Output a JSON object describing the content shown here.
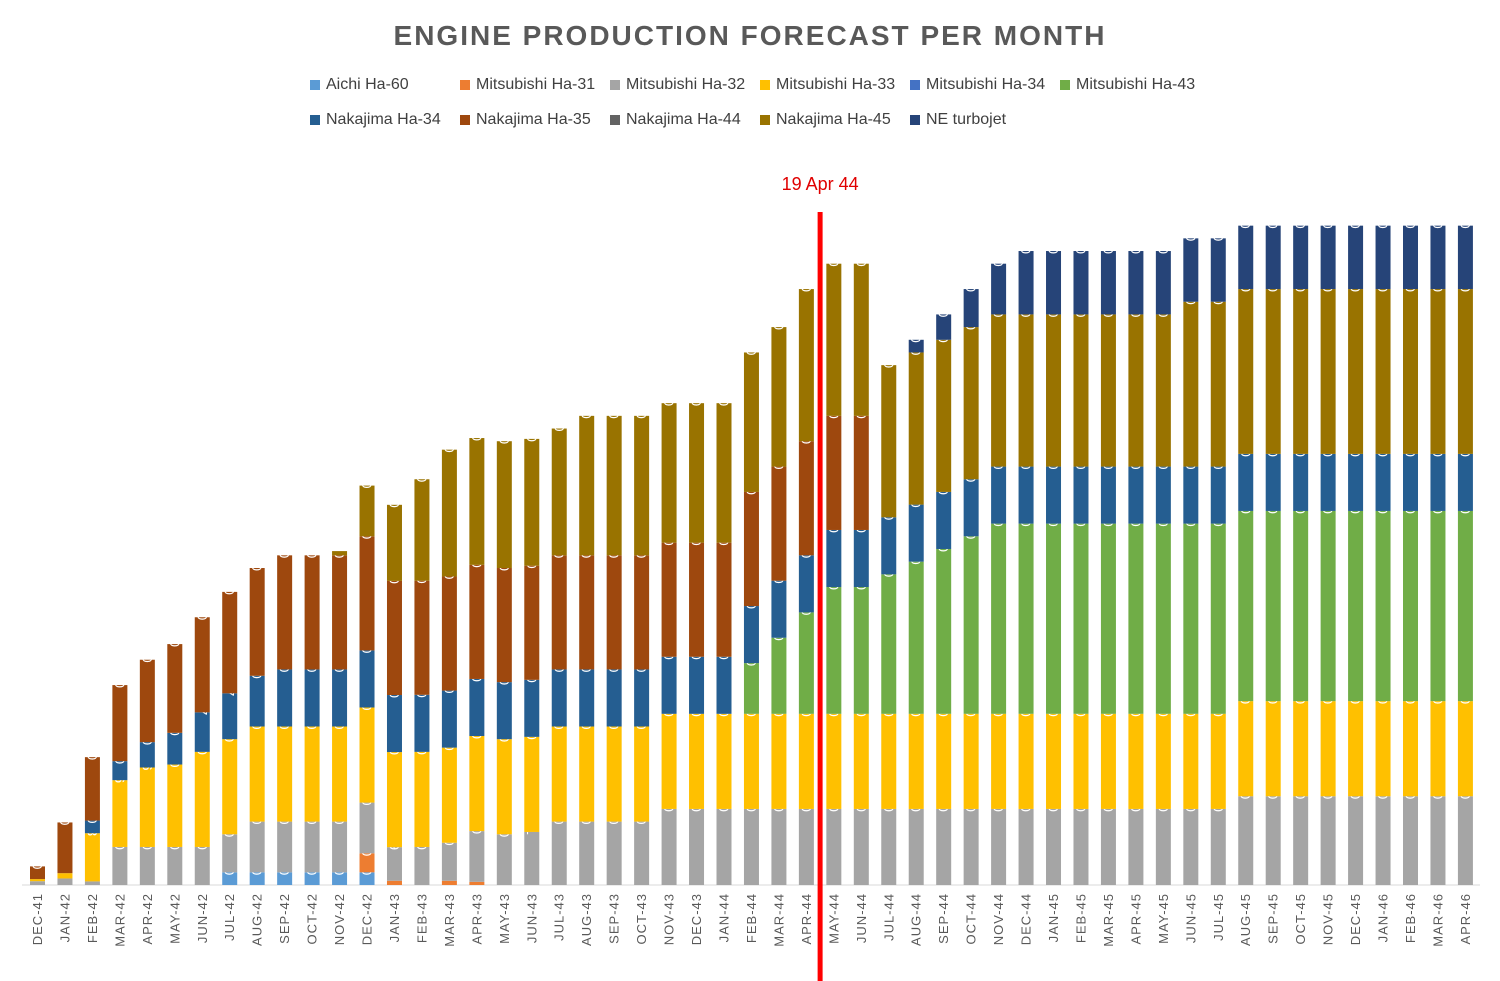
{
  "chart_data": {
    "type": "bar",
    "stacked": true,
    "title": "ENGINE PRODUCTION FORECAST PER MONTH",
    "xlabel": "",
    "ylabel": "",
    "grid": false,
    "legend_position": "top",
    "marker": {
      "label": "19 Apr 44",
      "between": [
        "APR-44",
        "MAY-44"
      ],
      "color": "#ff0000"
    },
    "categories": [
      "DEC-41",
      "JAN-42",
      "FEB-42",
      "MAR-42",
      "APR-42",
      "MAY-42",
      "JUN-42",
      "JUL-42",
      "AUG-42",
      "SEP-42",
      "OCT-42",
      "NOV-42",
      "DEC-42",
      "JAN-43",
      "FEB-43",
      "MAR-43",
      "APR-43",
      "MAY-43",
      "JUN-43",
      "JUL-43",
      "AUG-43",
      "SEP-43",
      "OCT-43",
      "NOV-43",
      "DEC-43",
      "JAN-44",
      "FEB-44",
      "MAR-44",
      "APR-44",
      "MAY-44",
      "JUN-44",
      "JUL-44",
      "AUG-44",
      "SEP-44",
      "OCT-44",
      "NOV-44",
      "DEC-44",
      "JAN-45",
      "FEB-45",
      "MAR-45",
      "APR-45",
      "MAY-45",
      "JUN-45",
      "JUL-45",
      "AUG-45",
      "SEP-45",
      "OCT-45",
      "NOV-45",
      "DEC-45",
      "JAN-46",
      "FEB-46",
      "MAR-46",
      "APR-46"
    ],
    "series": [
      {
        "name": "Aichi Ha-60",
        "color": "#5b9bd5",
        "values": [
          0,
          0,
          0,
          0,
          0,
          0,
          0,
          60,
          60,
          60,
          60,
          60,
          60,
          0,
          0,
          0,
          0,
          0,
          0,
          0,
          0,
          0,
          0,
          0,
          0,
          0,
          0,
          0,
          0,
          0,
          0,
          0,
          0,
          0,
          0,
          0,
          0,
          0,
          0,
          0,
          0,
          0,
          0,
          0,
          0,
          0,
          0,
          0,
          0,
          0,
          0,
          0,
          0
        ]
      },
      {
        "name": "Mitsubishi Ha-31",
        "color": "#ed7d31",
        "values": [
          0,
          0,
          0,
          0,
          0,
          0,
          0,
          0,
          0,
          0,
          0,
          0,
          90,
          20,
          0,
          20,
          15,
          0,
          0,
          0,
          0,
          0,
          0,
          0,
          0,
          0,
          0,
          0,
          0,
          0,
          0,
          0,
          0,
          0,
          0,
          0,
          0,
          0,
          0,
          0,
          0,
          0,
          0,
          0,
          0,
          0,
          0,
          0,
          0,
          0,
          0,
          0,
          0
        ]
      },
      {
        "name": "Mitsubishi Ha-32",
        "color": "#a5a5a5",
        "values": [
          18,
          31,
          17,
          180,
          180,
          180,
          180,
          180,
          240,
          240,
          240,
          240,
          240,
          159,
          180,
          180,
          240,
          240,
          251,
          300,
          300,
          300,
          300,
          360,
          360,
          360,
          360,
          360,
          360,
          360,
          360,
          360,
          360,
          360,
          360,
          360,
          360,
          360,
          360,
          360,
          360,
          360,
          360,
          360,
          420,
          420,
          420,
          420,
          420,
          420,
          420,
          420,
          420
        ]
      },
      {
        "name": "Mitsubishi Ha-33",
        "color": "#ffc000",
        "values": [
          10,
          25,
          228,
          316,
          376,
          390,
          450,
          450,
          450,
          450,
          450,
          450,
          450,
          450,
          450,
          450,
          450,
          450,
          450,
          450,
          450,
          450,
          450,
          450,
          450,
          450,
          450,
          450,
          450,
          450,
          450,
          450,
          450,
          450,
          450,
          450,
          450,
          450,
          450,
          450,
          450,
          450,
          450,
          450,
          450,
          450,
          450,
          450,
          450,
          450,
          450,
          450,
          450
        ]
      },
      {
        "name": "Mitsubishi Ha-34",
        "color": "#4472c4",
        "values": [
          0,
          0,
          0,
          0,
          0,
          0,
          0,
          0,
          0,
          0,
          0,
          0,
          0,
          0,
          0,
          0,
          0,
          0,
          0,
          0,
          0,
          0,
          0,
          0,
          0,
          0,
          0,
          0,
          0,
          0,
          0,
          0,
          0,
          0,
          0,
          0,
          0,
          0,
          0,
          0,
          0,
          0,
          0,
          0,
          0,
          0,
          0,
          0,
          0,
          0,
          0,
          0,
          0
        ]
      },
      {
        "name": "Mitsubishi Ha-43",
        "color": "#70ad47",
        "values": [
          0,
          0,
          0,
          0,
          0,
          0,
          0,
          0,
          0,
          0,
          0,
          0,
          0,
          0,
          0,
          0,
          0,
          0,
          0,
          0,
          0,
          0,
          0,
          0,
          0,
          0,
          240,
          360,
          480,
          600,
          600,
          660,
          720,
          780,
          840,
          900,
          900,
          900,
          900,
          900,
          900,
          900,
          900,
          900,
          900,
          900,
          900,
          900,
          900,
          900,
          900,
          900,
          900
        ]
      },
      {
        "name": "Nakajima Ha-34",
        "color": "#255e91",
        "values": [
          0,
          0,
          60,
          90,
          120,
          150,
          187,
          217,
          240,
          270,
          270,
          270,
          270,
          270,
          270,
          270,
          270,
          270,
          270,
          270,
          270,
          270,
          270,
          270,
          270,
          270,
          270,
          270,
          270,
          270,
          270,
          270,
          270,
          270,
          270,
          270,
          270,
          270,
          270,
          270,
          270,
          270,
          270,
          270,
          270,
          270,
          270,
          270,
          270,
          270,
          270,
          270,
          270
        ]
      },
      {
        "name": "Nakajima Ha-35",
        "color": "#9e480e",
        "values": [
          60,
          240,
          300,
          360,
          390,
          420,
          450,
          480,
          510,
          540,
          540,
          540,
          540,
          540,
          540,
          540,
          540,
          540,
          540,
          540,
          540,
          540,
          540,
          540,
          540,
          540,
          540,
          540,
          540,
          540,
          540,
          0,
          0,
          0,
          0,
          0,
          0,
          0,
          0,
          0,
          0,
          0,
          0,
          0,
          0,
          0,
          0,
          0,
          0,
          0,
          0,
          0,
          0
        ]
      },
      {
        "name": "Nakajima Ha-44",
        "color": "#636363",
        "values": [
          0,
          0,
          0,
          0,
          0,
          0,
          0,
          0,
          0,
          0,
          0,
          0,
          0,
          0,
          0,
          0,
          0,
          0,
          0,
          0,
          0,
          0,
          0,
          0,
          0,
          0,
          0,
          0,
          0,
          0,
          0,
          0,
          0,
          0,
          0,
          0,
          0,
          0,
          0,
          0,
          0,
          0,
          0,
          0,
          0,
          0,
          0,
          0,
          0,
          0,
          0,
          0,
          0
        ]
      },
      {
        "name": "Nakajima Ha-45",
        "color": "#997300",
        "values": [
          0,
          0,
          0,
          0,
          0,
          0,
          0,
          0,
          0,
          0,
          0,
          20,
          240,
          360,
          480,
          600,
          600,
          600,
          600,
          600,
          660,
          660,
          660,
          660,
          660,
          660,
          660,
          660,
          720,
          720,
          720,
          720,
          720,
          720,
          720,
          720,
          720,
          720,
          720,
          720,
          720,
          720,
          780,
          780,
          780,
          780,
          780,
          780,
          780,
          780,
          780,
          780,
          780
        ]
      },
      {
        "name": "NE turbojet",
        "color": "#264478",
        "values": [
          0,
          0,
          0,
          0,
          0,
          0,
          0,
          0,
          0,
          0,
          0,
          0,
          0,
          0,
          0,
          0,
          0,
          0,
          0,
          0,
          0,
          0,
          0,
          0,
          0,
          0,
          0,
          0,
          0,
          0,
          0,
          0,
          60,
          120,
          180,
          240,
          300,
          300,
          300,
          300,
          300,
          300,
          300,
          300,
          300,
          300,
          300,
          300,
          300,
          300,
          300,
          300,
          300
        ]
      }
    ]
  }
}
